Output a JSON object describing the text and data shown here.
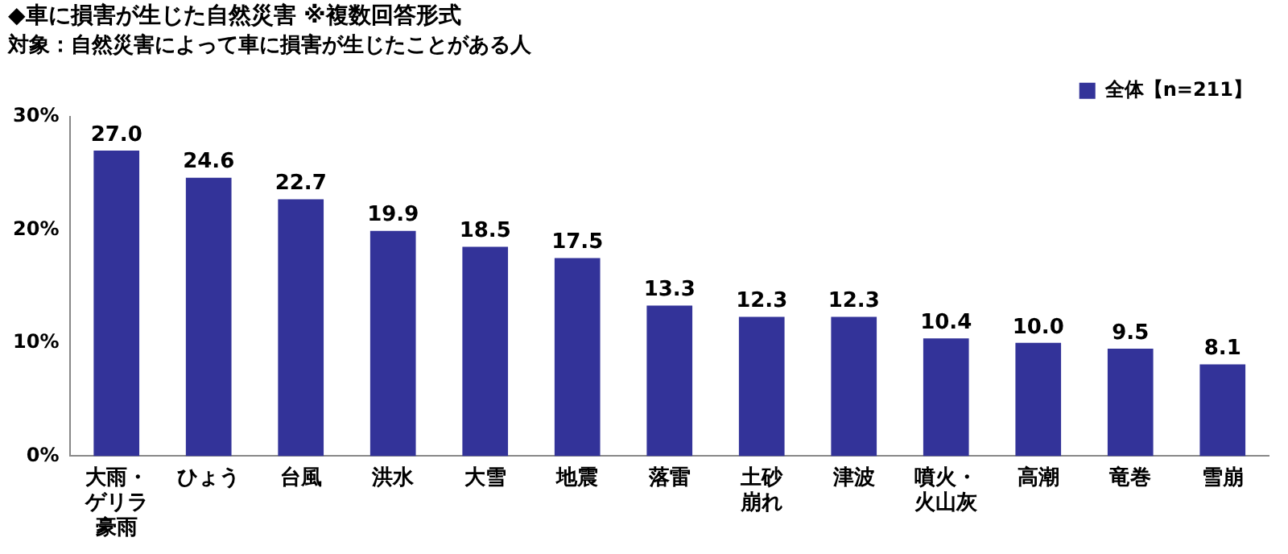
{
  "chart_data": {
    "type": "bar",
    "title": "◆車に損害が生じた自然災害 ※複数回答形式",
    "subtitle": "対象：自然災害によって車に損害が生じたことがある人",
    "categories": [
      "大雨・ゲリラ豪雨",
      "ひょう",
      "台風",
      "洪水",
      "大雪",
      "地震",
      "落雷",
      "土砂崩れ",
      "津波",
      "噴火・火山灰",
      "高潮",
      "竜巻",
      "雪崩"
    ],
    "series": [
      {
        "name": "全体【n=211】",
        "color": "#333399",
        "values": [
          27.0,
          24.6,
          22.7,
          19.9,
          18.5,
          17.5,
          13.3,
          12.3,
          12.3,
          10.4,
          10.0,
          9.5,
          8.1
        ],
        "value_labels": [
          "27.0",
          "24.6",
          "22.7",
          "19.9",
          "18.5",
          "17.5",
          "13.3",
          "12.3",
          "12.3",
          "10.4",
          "10.0",
          "9.5",
          "8.1"
        ]
      }
    ],
    "ylim": [
      0,
      30
    ],
    "yticks": [
      {
        "value": 0,
        "label": "0%"
      },
      {
        "value": 10,
        "label": "10%"
      },
      {
        "value": 20,
        "label": "20%"
      },
      {
        "value": 30,
        "label": "30%"
      }
    ],
    "grid": false,
    "legend": "top right"
  }
}
